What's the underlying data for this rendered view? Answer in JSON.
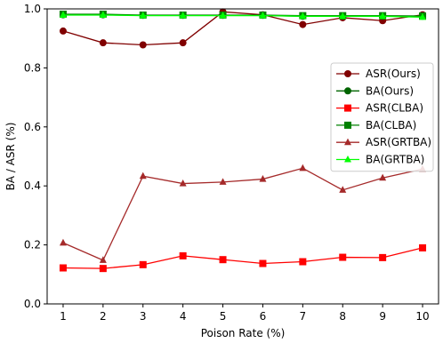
{
  "chart_data": {
    "type": "line",
    "xlabel": "Poison Rate (%)",
    "ylabel": "BA / ASR (%)",
    "x": [
      1,
      2,
      3,
      4,
      5,
      6,
      7,
      8,
      9,
      10
    ],
    "xlim": [
      0.6,
      10.4
    ],
    "ylim": [
      0.0,
      1.0
    ],
    "yticks": [
      0.0,
      0.2,
      0.4,
      0.6,
      0.8,
      1.0
    ],
    "ytick_labels": [
      "0.0",
      "0.2",
      "0.4",
      "0.6",
      "0.8",
      "1.0"
    ],
    "xtick_labels": [
      "1",
      "2",
      "3",
      "4",
      "5",
      "6",
      "7",
      "8",
      "9",
      "10"
    ],
    "legend_position": "center-right",
    "series": [
      {
        "name": "ASR(Ours)",
        "color": "#800000",
        "marker": "circle",
        "values": [
          0.925,
          0.885,
          0.878,
          0.885,
          0.99,
          0.98,
          0.947,
          0.97,
          0.96,
          0.98
        ]
      },
      {
        "name": "BA(Ours)",
        "color": "#006400",
        "marker": "circle",
        "values": [
          0.98,
          0.98,
          0.978,
          0.978,
          0.978,
          0.978,
          0.975,
          0.975,
          0.975,
          0.975
        ]
      },
      {
        "name": "ASR(CLBA)",
        "color": "#ff0000",
        "marker": "square",
        "values": [
          0.122,
          0.12,
          0.133,
          0.163,
          0.15,
          0.137,
          0.143,
          0.158,
          0.157,
          0.19
        ]
      },
      {
        "name": "BA(CLBA)",
        "color": "#008000",
        "marker": "square",
        "values": [
          0.982,
          0.982,
          0.979,
          0.979,
          0.979,
          0.979,
          0.977,
          0.977,
          0.977,
          0.976
        ]
      },
      {
        "name": "ASR(GRTBA)",
        "color": "#a52a2a",
        "marker": "triangle",
        "values": [
          0.207,
          0.148,
          0.433,
          0.408,
          0.413,
          0.423,
          0.46,
          0.386,
          0.427,
          0.457
        ]
      },
      {
        "name": "BA(GRTBA)",
        "color": "#00ff00",
        "marker": "triangle",
        "values": [
          0.979,
          0.979,
          0.977,
          0.977,
          0.977,
          0.977,
          0.975,
          0.975,
          0.975,
          0.972
        ]
      }
    ]
  }
}
